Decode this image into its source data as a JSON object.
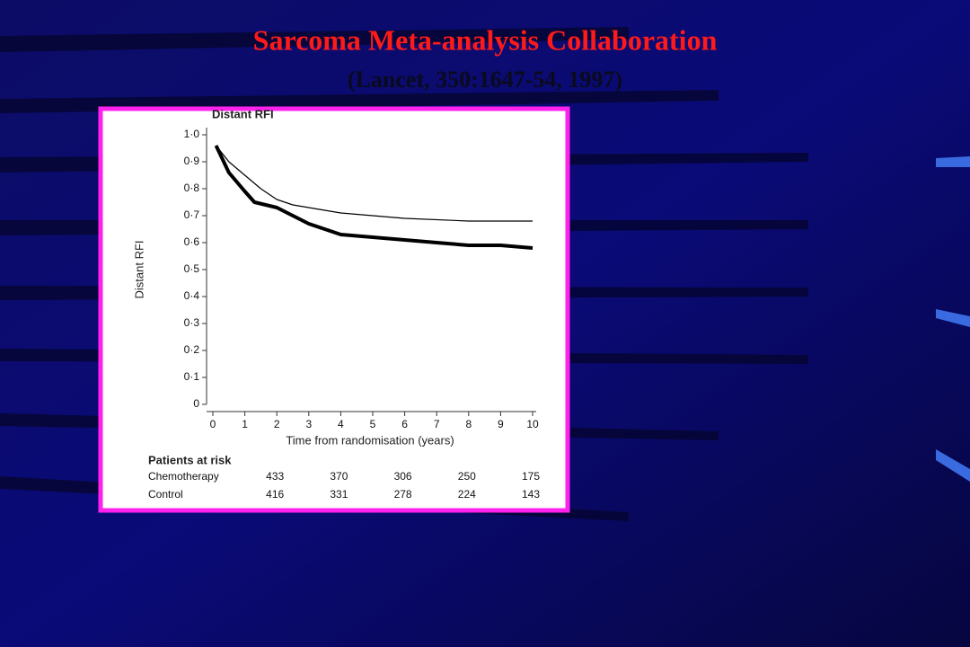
{
  "slide": {
    "title": "Sarcoma Meta-analysis Collaboration",
    "subtitle": "(Lancet, 350:1647-54, 1997)"
  },
  "chart_data": {
    "type": "line",
    "title": "Distant RFI",
    "x_label": "Time from randomisation (years)",
    "y_label": "Distant RFI",
    "xlim": [
      0,
      10
    ],
    "xticks": [
      0,
      1,
      2,
      3,
      4,
      5,
      6,
      7,
      8,
      9,
      10
    ],
    "ylim": [
      0,
      1
    ],
    "yticks": [
      0,
      {
        "value": 0.1,
        "label": "0·1"
      },
      {
        "value": 0.2,
        "label": "0·2"
      },
      {
        "value": 0.3,
        "label": "0·3"
      },
      {
        "value": 0.4,
        "label": "0·4"
      },
      {
        "value": 0.5,
        "label": "0·5"
      },
      {
        "value": 0.6,
        "label": "0·6"
      },
      {
        "value": 0.7,
        "label": "0·7"
      },
      {
        "value": 0.8,
        "label": "0·8"
      },
      {
        "value": 0.9,
        "label": "0·9"
      },
      {
        "value": 1.0,
        "label": "1·0"
      }
    ],
    "risk_table_title": "Patients at risk",
    "series": [
      {
        "name": "Chemotherapy",
        "color": "#000000",
        "width": 1.2,
        "x": [
          0.1,
          0.5,
          1,
          1.5,
          2,
          2.5,
          3,
          3.5,
          4,
          5,
          6,
          8,
          10
        ],
        "values": [
          0.96,
          0.9,
          0.85,
          0.8,
          0.76,
          0.74,
          0.73,
          0.72,
          0.71,
          0.7,
          0.69,
          0.68,
          0.68
        ],
        "at_risk": [
          433,
          370,
          306,
          250,
          175
        ]
      },
      {
        "name": "Control",
        "color": "#000000",
        "width": 4,
        "x": [
          0.1,
          0.5,
          1,
          1.3,
          2,
          2.5,
          3,
          3.5,
          4,
          5,
          6,
          7,
          8,
          9,
          10
        ],
        "values": [
          0.96,
          0.86,
          0.79,
          0.75,
          0.73,
          0.7,
          0.67,
          0.65,
          0.63,
          0.62,
          0.61,
          0.6,
          0.59,
          0.59,
          0.58
        ],
        "at_risk": [
          416,
          331,
          278,
          224,
          143
        ]
      }
    ]
  }
}
